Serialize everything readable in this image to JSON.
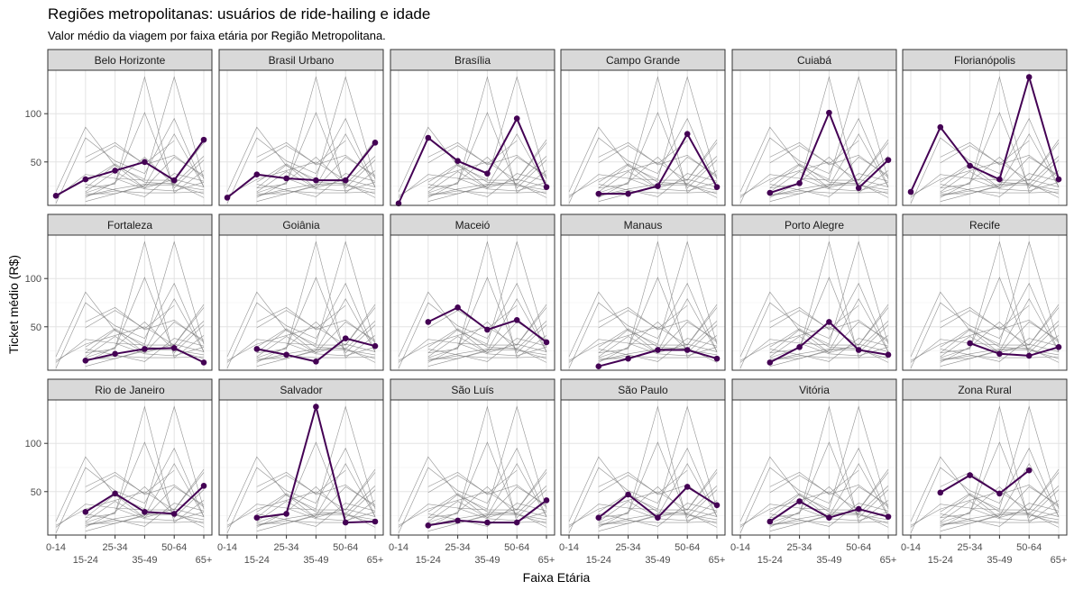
{
  "chart_data": {
    "type": "line",
    "title": "Regiões metropolitanas: usuários de ride-hailing e idade",
    "subtitle": "Valor médio da viagem por faixa etária por Região Metropolitana.",
    "xlabel": "Faixa Etária",
    "ylabel": "Ticket médio (R$)",
    "categories": [
      "0-14",
      "15-24",
      "25-34",
      "35-49",
      "50-64",
      "65+"
    ],
    "yticks": [
      50,
      100
    ],
    "ylim": [
      5,
      145
    ],
    "grid": true,
    "highlight_color": "#440154",
    "background_color": "#808080",
    "panels": [
      {
        "name": "Belo Horizonte",
        "values": [
          15,
          32,
          41,
          50,
          31,
          73
        ]
      },
      {
        "name": "Brasil Urbano",
        "values": [
          13,
          37,
          33,
          31,
          31,
          70
        ]
      },
      {
        "name": "Brasília",
        "values": [
          7,
          75,
          51,
          38,
          95,
          24
        ]
      },
      {
        "name": "Campo Grande",
        "values": [
          null,
          17,
          17,
          25,
          79,
          24
        ]
      },
      {
        "name": "Cuiabá",
        "values": [
          null,
          18,
          28,
          101,
          23,
          52
        ]
      },
      {
        "name": "Florianópolis",
        "values": [
          19,
          86,
          46,
          32,
          138,
          32
        ]
      },
      {
        "name": "Fortaleza",
        "values": [
          null,
          15,
          22,
          27,
          28,
          13
        ]
      },
      {
        "name": "Goiânia",
        "values": [
          null,
          27,
          21,
          14,
          38,
          30
        ]
      },
      {
        "name": "Maceió",
        "values": [
          null,
          55,
          70,
          47,
          57,
          34
        ]
      },
      {
        "name": "Manaus",
        "values": [
          null,
          9,
          17,
          26,
          26,
          17
        ]
      },
      {
        "name": "Porto Alegre",
        "values": [
          null,
          13,
          29,
          55,
          26,
          21
        ]
      },
      {
        "name": "Recife",
        "values": [
          null,
          null,
          33,
          22,
          20,
          29
        ]
      },
      {
        "name": "Rio de Janeiro",
        "values": [
          null,
          29,
          48,
          29,
          27,
          56
        ]
      },
      {
        "name": "Salvador",
        "values": [
          null,
          23,
          27,
          138,
          18,
          19
        ]
      },
      {
        "name": "São Luís",
        "values": [
          null,
          15,
          20,
          18,
          18,
          41
        ]
      },
      {
        "name": "São Paulo",
        "values": [
          null,
          23,
          47,
          23,
          55,
          36
        ]
      },
      {
        "name": "Vitória",
        "values": [
          null,
          19,
          40,
          23,
          32,
          24
        ]
      },
      {
        "name": "Zona Rural",
        "values": [
          null,
          49,
          67,
          48,
          72,
          null
        ]
      }
    ]
  }
}
